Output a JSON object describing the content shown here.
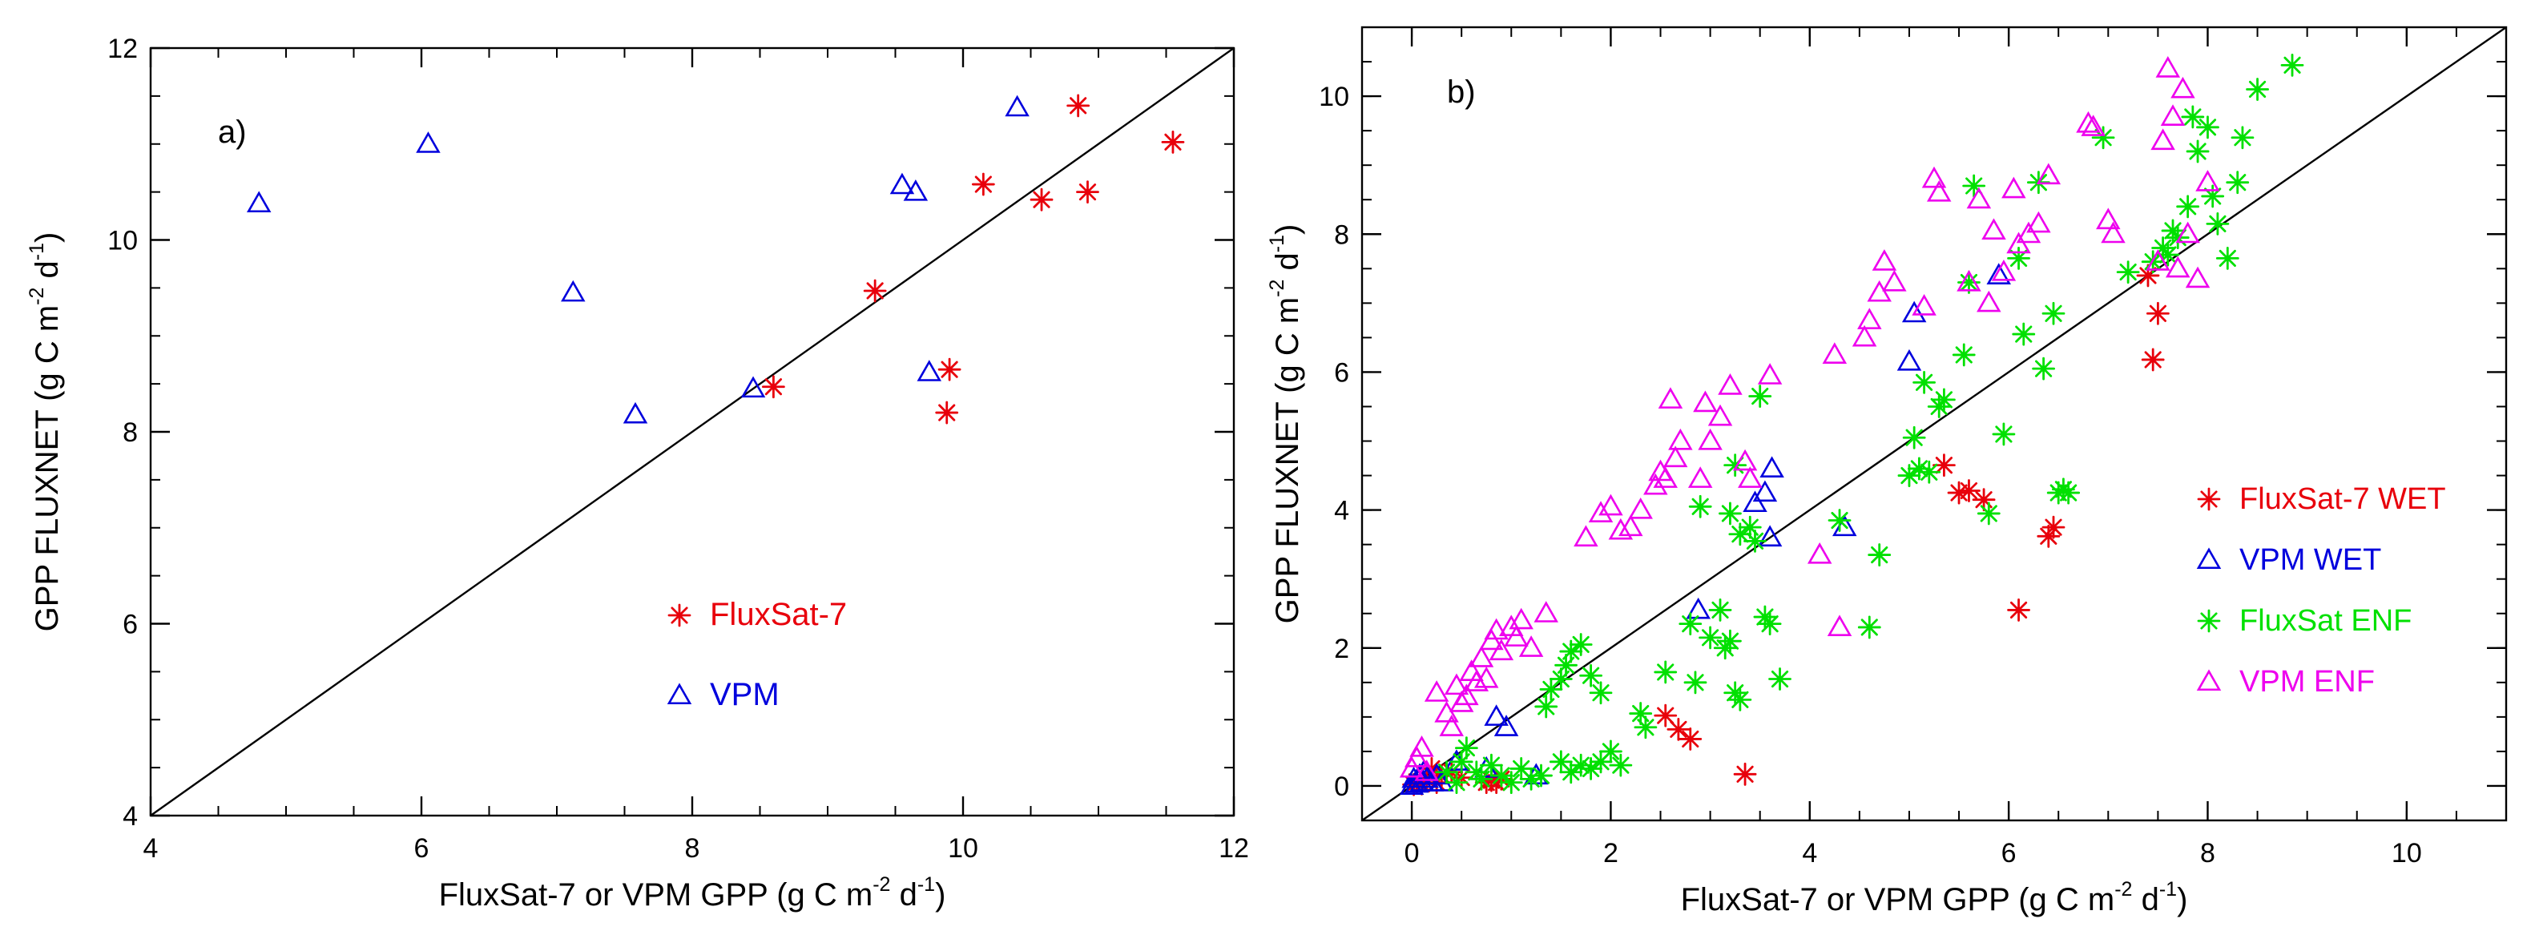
{
  "colors": {
    "fluxsat7": "#e8000b",
    "vpm": "#0000dd",
    "fluxsat_enf": "#00e000",
    "vpm_enf": "#ee00ee",
    "axis": "#000000"
  },
  "chart_data": [
    {
      "type": "scatter",
      "panel_label": "a)",
      "xlabel": {
        "main": "FluxSat-7 or VPM GPP (g C m",
        "sup1": "-2",
        "mid": " d",
        "sup2": "-1",
        "end": ")"
      },
      "ylabel": {
        "main": "GPP FLUXNET (g C m",
        "sup1": "-2",
        "mid": " d",
        "sup2": "-1",
        "end": ")"
      },
      "xlim": [
        4,
        12
      ],
      "ylim": [
        4,
        12
      ],
      "xticks": [
        4,
        6,
        8,
        10,
        12
      ],
      "yticks": [
        4,
        6,
        8,
        10,
        12
      ],
      "xtick_labels": [
        "4",
        "6",
        "8",
        "10",
        "12"
      ],
      "ytick_labels": [
        "4",
        "6",
        "8",
        "10",
        "12"
      ],
      "minor_tick_step": 0.5,
      "one_to_one_line": true,
      "legend_position": "lower-right",
      "series": [
        {
          "name": "FluxSat-7",
          "marker": "asterisk",
          "color": "#e8000b",
          "points": [
            [
              8.6,
              8.47
            ],
            [
              9.35,
              9.47
            ],
            [
              9.9,
              8.65
            ],
            [
              9.88,
              8.2
            ],
            [
              10.15,
              10.58
            ],
            [
              10.58,
              10.42
            ],
            [
              10.85,
              11.4
            ],
            [
              10.92,
              10.5
            ],
            [
              11.55,
              11.02
            ]
          ]
        },
        {
          "name": "VPM",
          "marker": "triangle",
          "color": "#0000dd",
          "points": [
            [
              4.8,
              10.38
            ],
            [
              6.05,
              11.0
            ],
            [
              7.12,
              9.45
            ],
            [
              7.58,
              8.18
            ],
            [
              8.45,
              8.45
            ],
            [
              9.55,
              10.57
            ],
            [
              9.65,
              10.5
            ],
            [
              9.75,
              8.62
            ],
            [
              10.4,
              11.38
            ]
          ]
        }
      ]
    },
    {
      "type": "scatter",
      "panel_label": "b)",
      "xlabel": {
        "main": "FluxSat-7 or VPM GPP (g C m",
        "sup1": "-2",
        "mid": " d",
        "sup2": "-1",
        "end": ")"
      },
      "ylabel": {
        "main": "GPP FLUXNET (g C m",
        "sup1": "-2",
        "mid": " d",
        "sup2": "-1",
        "end": ")"
      },
      "xlim": [
        -0.5,
        11
      ],
      "ylim": [
        -0.5,
        11
      ],
      "xticks": [
        0,
        2,
        4,
        6,
        8,
        10
      ],
      "yticks": [
        0,
        2,
        4,
        6,
        8,
        10
      ],
      "xtick_labels": [
        "0",
        "2",
        "4",
        "6",
        "8",
        "10"
      ],
      "ytick_labels": [
        "0",
        "2",
        "4",
        "6",
        "8",
        "10"
      ],
      "minor_tick_step": 0.5,
      "one_to_one_line": true,
      "legend_position": "right",
      "series": [
        {
          "name": "FluxSat-7 WET",
          "marker": "asterisk",
          "color": "#e8000b",
          "points": [
            [
              0.02,
              0.02
            ],
            [
              0.05,
              0.06
            ],
            [
              0.1,
              0.03
            ],
            [
              0.15,
              0.1
            ],
            [
              0.2,
              0.25
            ],
            [
              0.25,
              0.05
            ],
            [
              0.3,
              0.15
            ],
            [
              0.4,
              0.2
            ],
            [
              0.5,
              0.12
            ],
            [
              0.75,
              0.05
            ],
            [
              0.8,
              0.08
            ],
            [
              0.85,
              0.05
            ],
            [
              0.9,
              0.1
            ],
            [
              2.55,
              1.02
            ],
            [
              2.68,
              0.82
            ],
            [
              2.8,
              0.68
            ],
            [
              3.35,
              0.17
            ],
            [
              5.35,
              4.65
            ],
            [
              5.5,
              4.25
            ],
            [
              5.6,
              4.28
            ],
            [
              5.75,
              4.15
            ],
            [
              6.1,
              2.55
            ],
            [
              6.4,
              3.62
            ],
            [
              6.45,
              3.75
            ],
            [
              7.4,
              7.4
            ],
            [
              7.5,
              6.85
            ],
            [
              7.45,
              6.18
            ]
          ]
        },
        {
          "name": "VPM WET",
          "marker": "triangle",
          "color": "#0000dd",
          "points": [
            [
              0.0,
              0.0
            ],
            [
              0.02,
              0.1
            ],
            [
              0.05,
              0.03
            ],
            [
              0.08,
              0.15
            ],
            [
              0.1,
              0.05
            ],
            [
              0.12,
              0.2
            ],
            [
              0.15,
              0.1
            ],
            [
              0.2,
              0.05
            ],
            [
              0.25,
              0.15
            ],
            [
              0.3,
              0.05
            ],
            [
              0.45,
              0.35
            ],
            [
              0.75,
              0.25
            ],
            [
              0.85,
              1.0
            ],
            [
              0.95,
              0.85
            ],
            [
              1.25,
              0.15
            ],
            [
              2.88,
              2.55
            ],
            [
              3.45,
              4.1
            ],
            [
              3.55,
              4.25
            ],
            [
              3.6,
              3.6
            ],
            [
              3.62,
              4.6
            ],
            [
              4.35,
              3.75
            ],
            [
              5.0,
              6.15
            ],
            [
              5.05,
              6.85
            ],
            [
              5.9,
              7.4
            ]
          ]
        },
        {
          "name": "FluxSat ENF",
          "marker": "asterisk",
          "color": "#00e000",
          "points": [
            [
              0.35,
              0.2
            ],
            [
              0.45,
              0.05
            ],
            [
              0.5,
              0.35
            ],
            [
              0.55,
              0.55
            ],
            [
              0.65,
              0.2
            ],
            [
              0.7,
              0.1
            ],
            [
              0.8,
              0.3
            ],
            [
              0.9,
              0.15
            ],
            [
              1.0,
              0.05
            ],
            [
              1.1,
              0.25
            ],
            [
              1.2,
              0.1
            ],
            [
              1.3,
              0.15
            ],
            [
              1.5,
              0.35
            ],
            [
              1.6,
              0.2
            ],
            [
              1.7,
              0.3
            ],
            [
              1.8,
              0.25
            ],
            [
              1.9,
              0.35
            ],
            [
              2.0,
              0.5
            ],
            [
              2.1,
              0.3
            ],
            [
              1.35,
              1.15
            ],
            [
              1.4,
              1.4
            ],
            [
              1.5,
              1.55
            ],
            [
              1.55,
              1.75
            ],
            [
              1.6,
              1.95
            ],
            [
              1.7,
              2.05
            ],
            [
              1.8,
              1.6
            ],
            [
              1.9,
              1.35
            ],
            [
              2.3,
              1.05
            ],
            [
              2.35,
              0.85
            ],
            [
              2.55,
              1.65
            ],
            [
              2.8,
              2.35
            ],
            [
              2.85,
              1.5
            ],
            [
              2.9,
              4.05
            ],
            [
              3.0,
              2.15
            ],
            [
              3.1,
              2.55
            ],
            [
              3.15,
              2.0
            ],
            [
              3.2,
              2.1
            ],
            [
              3.25,
              1.35
            ],
            [
              3.3,
              1.25
            ],
            [
              3.2,
              3.95
            ],
            [
              3.25,
              4.65
            ],
            [
              3.3,
              3.65
            ],
            [
              3.4,
              3.75
            ],
            [
              3.45,
              3.55
            ],
            [
              3.5,
              5.65
            ],
            [
              3.55,
              2.45
            ],
            [
              3.6,
              2.35
            ],
            [
              3.7,
              1.55
            ],
            [
              4.3,
              3.85
            ],
            [
              4.6,
              2.3
            ],
            [
              4.7,
              3.35
            ],
            [
              5.0,
              4.5
            ],
            [
              5.05,
              5.05
            ],
            [
              5.1,
              4.6
            ],
            [
              5.15,
              5.85
            ],
            [
              5.2,
              4.55
            ],
            [
              5.3,
              5.5
            ],
            [
              5.35,
              5.6
            ],
            [
              5.55,
              6.25
            ],
            [
              5.6,
              7.3
            ],
            [
              5.65,
              8.7
            ],
            [
              5.8,
              3.95
            ],
            [
              5.95,
              5.1
            ],
            [
              6.1,
              7.65
            ],
            [
              6.15,
              6.55
            ],
            [
              6.3,
              8.75
            ],
            [
              6.35,
              6.05
            ],
            [
              6.45,
              6.85
            ],
            [
              6.5,
              4.25
            ],
            [
              6.55,
              4.3
            ],
            [
              6.6,
              4.25
            ],
            [
              6.95,
              9.4
            ],
            [
              7.2,
              7.45
            ],
            [
              7.45,
              7.6
            ],
            [
              7.55,
              7.8
            ],
            [
              7.6,
              7.7
            ],
            [
              7.65,
              8.05
            ],
            [
              7.7,
              7.95
            ],
            [
              7.8,
              8.4
            ],
            [
              7.85,
              9.7
            ],
            [
              7.9,
              9.2
            ],
            [
              8.0,
              9.55
            ],
            [
              8.05,
              8.55
            ],
            [
              8.1,
              8.15
            ],
            [
              8.2,
              7.65
            ],
            [
              8.3,
              8.75
            ],
            [
              8.35,
              9.4
            ],
            [
              8.5,
              10.1
            ],
            [
              8.85,
              10.45
            ]
          ]
        },
        {
          "name": "VPM ENF",
          "marker": "triangle",
          "color": "#ee00ee",
          "points": [
            [
              0.0,
              0.25
            ],
            [
              0.05,
              0.4
            ],
            [
              0.1,
              0.55
            ],
            [
              0.15,
              0.2
            ],
            [
              0.25,
              1.35
            ],
            [
              0.35,
              1.05
            ],
            [
              0.4,
              0.85
            ],
            [
              0.45,
              1.45
            ],
            [
              0.5,
              1.2
            ],
            [
              0.55,
              1.3
            ],
            [
              0.6,
              1.65
            ],
            [
              0.65,
              1.5
            ],
            [
              0.7,
              1.85
            ],
            [
              0.75,
              1.55
            ],
            [
              0.8,
              2.1
            ],
            [
              0.85,
              2.25
            ],
            [
              0.9,
              1.95
            ],
            [
              1.0,
              2.3
            ],
            [
              1.05,
              2.15
            ],
            [
              1.1,
              2.4
            ],
            [
              1.2,
              2.0
            ],
            [
              1.35,
              2.5
            ],
            [
              1.75,
              3.6
            ],
            [
              1.9,
              3.95
            ],
            [
              2.0,
              4.05
            ],
            [
              2.1,
              3.7
            ],
            [
              2.2,
              3.75
            ],
            [
              2.3,
              4.0
            ],
            [
              2.45,
              4.35
            ],
            [
              2.5,
              4.55
            ],
            [
              2.55,
              4.45
            ],
            [
              2.6,
              5.6
            ],
            [
              2.65,
              4.75
            ],
            [
              2.7,
              5.0
            ],
            [
              2.9,
              4.45
            ],
            [
              2.95,
              5.55
            ],
            [
              3.0,
              5.0
            ],
            [
              3.1,
              5.35
            ],
            [
              3.2,
              5.8
            ],
            [
              3.35,
              4.7
            ],
            [
              3.4,
              4.45
            ],
            [
              3.6,
              5.95
            ],
            [
              4.1,
              3.35
            ],
            [
              4.25,
              6.25
            ],
            [
              4.3,
              2.3
            ],
            [
              4.55,
              6.5
            ],
            [
              4.6,
              6.75
            ],
            [
              4.7,
              7.15
            ],
            [
              4.75,
              7.6
            ],
            [
              4.85,
              7.3
            ],
            [
              5.15,
              6.95
            ],
            [
              5.25,
              8.8
            ],
            [
              5.3,
              8.6
            ],
            [
              5.6,
              7.3
            ],
            [
              5.7,
              8.5
            ],
            [
              5.8,
              7.0
            ],
            [
              5.85,
              8.05
            ],
            [
              5.95,
              7.45
            ],
            [
              6.05,
              8.65
            ],
            [
              6.1,
              7.85
            ],
            [
              6.2,
              8.0
            ],
            [
              6.3,
              8.15
            ],
            [
              6.4,
              8.85
            ],
            [
              6.8,
              9.6
            ],
            [
              6.85,
              9.55
            ],
            [
              7.0,
              8.2
            ],
            [
              7.05,
              8.0
            ],
            [
              7.5,
              7.6
            ],
            [
              7.55,
              9.35
            ],
            [
              7.6,
              10.4
            ],
            [
              7.65,
              9.7
            ],
            [
              7.7,
              7.5
            ],
            [
              7.75,
              10.1
            ],
            [
              7.8,
              8.0
            ],
            [
              7.9,
              7.35
            ],
            [
              8.0,
              8.75
            ]
          ]
        }
      ]
    }
  ]
}
